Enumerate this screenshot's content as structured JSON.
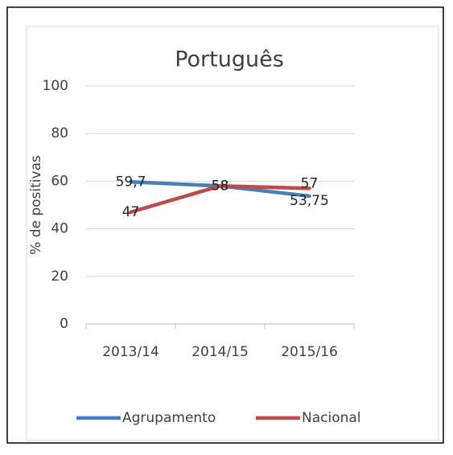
{
  "chart_data": {
    "type": "line",
    "title": "Português",
    "y_label": "% de positivas",
    "categories": [
      "2013/14",
      "2014/15",
      "2015/16"
    ],
    "series": [
      {
        "name": "Agrupamento",
        "color": "#4a7ebb",
        "values": [
          59.7,
          58,
          53.75
        ],
        "value_labels": [
          "59,7",
          "58",
          "53,75"
        ]
      },
      {
        "name": "Nacional",
        "color": "#be4b48",
        "values": [
          47,
          58,
          57
        ],
        "value_labels": [
          "47",
          "58",
          "57"
        ]
      }
    ],
    "ylim": [
      0,
      100
    ],
    "yticks": [
      0,
      20,
      40,
      60,
      80,
      100
    ],
    "grid": true,
    "legend": "bottom"
  }
}
